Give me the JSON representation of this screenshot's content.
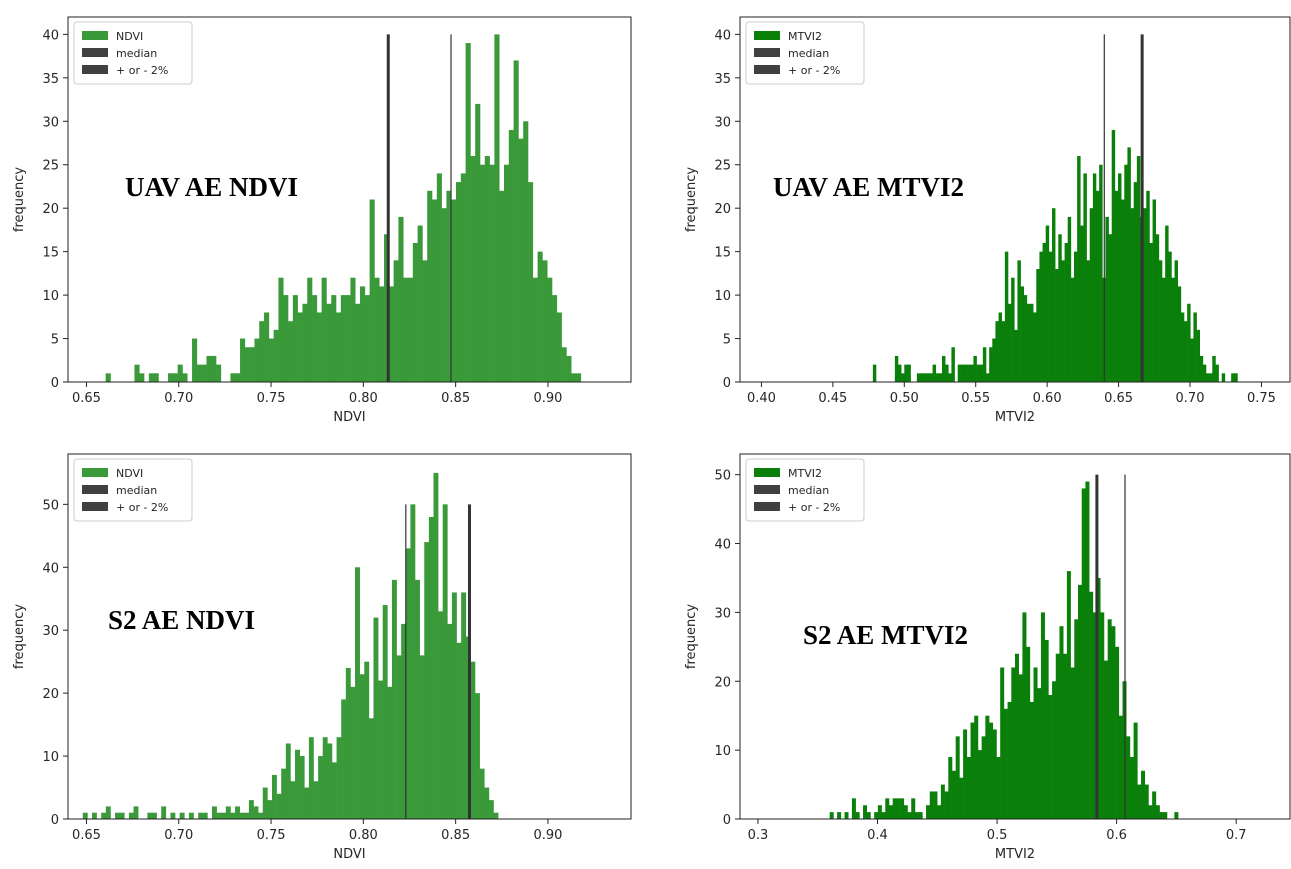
{
  "chart_data": [
    {
      "type": "histogram",
      "overlay_label": "UAV AE NDVI",
      "xlabel": "NDVI",
      "ylabel": "frequency",
      "xlim": [
        0.64,
        0.945
      ],
      "ylim": [
        0,
        42
      ],
      "xticks": [
        0.65,
        0.7,
        0.75,
        0.8,
        0.85,
        0.9
      ],
      "xtick_labels": [
        "0.65",
        "0.70",
        "0.75",
        "0.80",
        "0.85",
        "0.90"
      ],
      "yticks": [
        0,
        5,
        10,
        15,
        20,
        25,
        30,
        35,
        40
      ],
      "bar_color": "#3a9a3a",
      "bin_start": 0.65,
      "bin_width": 0.0026,
      "counts": [
        0,
        0,
        0,
        0,
        1,
        0,
        0,
        0,
        0,
        0,
        2,
        1,
        0,
        1,
        1,
        0,
        0,
        1,
        1,
        2,
        1,
        0,
        5,
        2,
        2,
        3,
        3,
        2,
        0,
        0,
        1,
        1,
        5,
        4,
        4,
        5,
        7,
        8,
        5,
        6,
        12,
        10,
        7,
        10,
        8,
        9,
        12,
        10,
        8,
        12,
        9,
        10,
        8,
        10,
        10,
        12,
        9,
        11,
        10,
        21,
        12,
        11,
        17,
        11,
        14,
        19,
        12,
        12,
        16,
        18,
        14,
        22,
        21,
        24,
        20,
        22,
        21,
        23,
        24,
        39,
        26,
        32,
        25,
        26,
        25,
        40,
        22,
        25,
        29,
        37,
        28,
        30,
        23,
        12,
        15,
        14,
        12,
        10,
        8,
        4,
        3,
        1,
        1,
        0
      ],
      "legend": [
        "NDVI",
        "median",
        "+ or - 2%"
      ],
      "median": 0.8135,
      "band": 0.8475,
      "line_height": 40,
      "legend_colors": [
        "#3a9a3a",
        "#404040",
        "#404040"
      ]
    },
    {
      "type": "histogram",
      "overlay_label": "UAV AE MTVI2",
      "xlabel": "MTVI2",
      "ylabel": "frequency",
      "xlim": [
        0.385,
        0.77
      ],
      "ylim": [
        0,
        42
      ],
      "xticks": [
        0.4,
        0.45,
        0.5,
        0.55,
        0.6,
        0.65,
        0.7,
        0.75
      ],
      "xtick_labels": [
        "0.40",
        "0.45",
        "0.50",
        "0.55",
        "0.60",
        "0.65",
        "0.70",
        "0.75"
      ],
      "yticks": [
        0,
        5,
        10,
        15,
        20,
        25,
        30,
        35,
        40
      ],
      "bar_color": "#0a800a",
      "bin_start": 0.478,
      "bin_width": 0.0022,
      "counts": [
        2,
        0,
        0,
        0,
        0,
        0,
        0,
        3,
        2,
        1,
        2,
        2,
        0,
        0,
        1,
        1,
        1,
        1,
        1,
        2,
        1,
        1,
        3,
        2,
        1,
        4,
        0,
        2,
        2,
        2,
        2,
        2,
        3,
        2,
        2,
        4,
        1,
        4,
        5,
        7,
        8,
        7,
        15,
        9,
        12,
        6,
        14,
        11,
        10,
        9,
        9,
        8,
        13,
        15,
        16,
        18,
        15,
        20,
        13,
        17,
        14,
        16,
        19,
        12,
        15,
        26,
        18,
        24,
        14,
        20,
        24,
        22,
        25,
        12,
        19,
        17,
        29,
        22,
        24,
        21,
        25,
        27,
        20,
        23,
        26,
        19,
        20,
        22,
        16,
        21,
        17,
        14,
        12,
        18,
        15,
        12,
        14,
        11,
        8,
        7,
        9,
        5,
        8,
        6,
        3,
        2,
        1,
        1,
        3,
        2,
        0,
        1,
        0,
        0,
        1,
        1
      ],
      "legend": [
        "MTVI2",
        "median",
        "+ or - 2%"
      ],
      "median": 0.6665,
      "band": 0.64,
      "line_height": 40,
      "legend_colors": [
        "#0a800a",
        "#404040",
        "#404040"
      ]
    },
    {
      "type": "histogram",
      "overlay_label": "S2 AE NDVI",
      "xlabel": "NDVI",
      "ylabel": "frequency",
      "xlim": [
        0.64,
        0.945
      ],
      "ylim": [
        0,
        58
      ],
      "xticks": [
        0.65,
        0.7,
        0.75,
        0.8,
        0.85,
        0.9
      ],
      "xtick_labels": [
        "0.65",
        "0.70",
        "0.75",
        "0.80",
        "0.85",
        "0.90"
      ],
      "yticks": [
        0,
        10,
        20,
        30,
        40,
        50
      ],
      "bar_color": "#3a9a3a",
      "bin_start": 0.648,
      "bin_width": 0.0025,
      "counts": [
        1,
        0,
        1,
        0,
        1,
        2,
        0,
        1,
        1,
        0,
        1,
        2,
        0,
        0,
        1,
        1,
        0,
        2,
        0,
        1,
        0,
        1,
        0,
        1,
        0,
        1,
        1,
        0,
        2,
        1,
        1,
        2,
        1,
        2,
        1,
        1,
        3,
        2,
        1,
        5,
        3,
        7,
        4,
        8,
        12,
        6,
        11,
        10,
        5,
        13,
        6,
        10,
        13,
        12,
        9,
        13,
        19,
        24,
        21,
        40,
        23,
        25,
        16,
        32,
        22,
        34,
        21,
        38,
        26,
        31,
        43,
        50,
        38,
        26,
        44,
        48,
        55,
        33,
        50,
        31,
        36,
        28,
        36,
        29,
        25,
        20,
        8,
        5,
        3,
        1,
        0
      ],
      "legend": [
        "NDVI",
        "median",
        "+ or - 2%"
      ],
      "median": 0.8575,
      "band": 0.823,
      "line_height": 50,
      "legend_colors": [
        "#3a9a3a",
        "#404040",
        "#404040"
      ]
    },
    {
      "type": "histogram",
      "overlay_label": "S2 AE MTVI2",
      "xlabel": "MTVI2",
      "ylabel": "frequency",
      "xlim": [
        0.285,
        0.745
      ],
      "ylim": [
        0,
        53
      ],
      "xticks": [
        0.3,
        0.4,
        0.5,
        0.6,
        0.7
      ],
      "xtick_labels": [
        "0.3",
        "0.4",
        "0.5",
        "0.6",
        "0.7"
      ],
      "yticks": [
        0,
        10,
        20,
        30,
        40,
        50
      ],
      "bar_color": "#0a800a",
      "bin_start": 0.36,
      "bin_width": 0.0031,
      "counts": [
        1,
        0,
        1,
        0,
        1,
        0,
        3,
        1,
        0,
        2,
        1,
        0,
        1,
        2,
        1,
        3,
        2,
        3,
        3,
        3,
        2,
        1,
        3,
        1,
        1,
        0,
        2,
        4,
        4,
        2,
        5,
        4,
        9,
        7,
        12,
        6,
        13,
        9,
        14,
        15,
        10,
        12,
        15,
        14,
        13,
        9,
        22,
        16,
        17,
        22,
        24,
        21,
        30,
        25,
        17,
        22,
        19,
        30,
        26,
        18,
        20,
        24,
        28,
        24,
        36,
        22,
        29,
        34,
        48,
        49,
        33,
        30,
        35,
        30,
        23,
        29,
        28,
        25,
        15,
        20,
        12,
        9,
        14,
        5,
        7,
        5,
        2,
        4,
        2,
        1,
        1,
        0,
        0,
        1,
        0
      ],
      "legend": [
        "MTVI2",
        "median",
        "+ or - 2%"
      ],
      "median": 0.5835,
      "band": 0.607,
      "line_height": 50,
      "legend_colors": [
        "#0a800a",
        "#404040",
        "#404040"
      ]
    }
  ]
}
